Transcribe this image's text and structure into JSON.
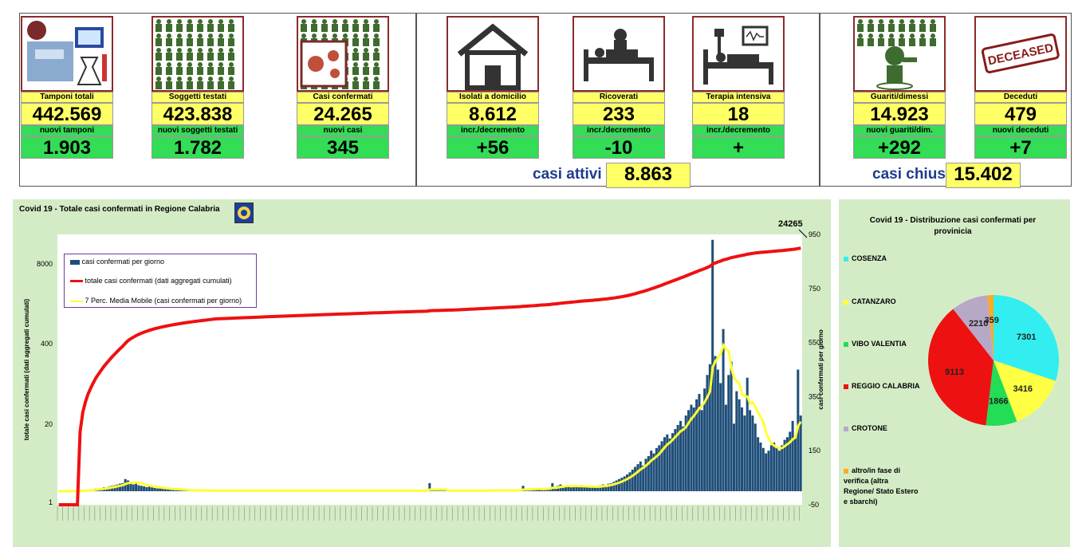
{
  "summary": {
    "cards": [
      {
        "id": "tamponi",
        "label": "Tamponi totali",
        "value": "442.569",
        "sub_label": "nuovi tamponi",
        "sub_value": "1.903"
      },
      {
        "id": "soggetti",
        "label": "Soggetti testati",
        "value": "423.838",
        "sub_label": "nuovi soggetti testati",
        "sub_value": "1.782"
      },
      {
        "id": "casi",
        "label": "Casi confermati",
        "value": "24.265",
        "sub_label": "nuovi casi",
        "sub_value": "345"
      },
      {
        "id": "isolati",
        "label": "Isolati a domicilio",
        "value": "8.612",
        "sub_label": "incr./decremento",
        "sub_value": "+56"
      },
      {
        "id": "ricoverati",
        "label": "Ricoverati",
        "value": "233",
        "sub_label": "incr./decremento",
        "sub_value": "-10"
      },
      {
        "id": "terapia",
        "label": "Terapia intensiva",
        "value": "18",
        "sub_label": "incr./decremento",
        "sub_value": "+"
      },
      {
        "id": "guariti",
        "label": "Guariti/dimessi",
        "value": "14.923",
        "sub_label": "nuovi guariti/dim.",
        "sub_value": "+292"
      },
      {
        "id": "deceduti",
        "label": "Deceduti",
        "value": "479",
        "sub_label": "nuovi deceduti",
        "sub_value": "+7"
      }
    ],
    "casi_attivi_label": "casi attivi",
    "casi_attivi_value": "8.863",
    "casi_chiusi_label": "casi chiusi",
    "casi_chiusi_value": "15.402",
    "deceased_stamp": "DECEASED"
  },
  "colors": {
    "bars": "#1f4e79",
    "cumulative": "#ee1111",
    "moving_avg": "#ffff33",
    "panel": "#d4ecc6"
  },
  "chart_data": [
    {
      "type": "bar+line",
      "title": "Covid 19 - Totale casi confermati in Regione Calabria",
      "ylabel_left": "totale casi confermati (dati aggregati cumulati)",
      "ylabel_right": "casi confermati per giorno",
      "y_left_ticks": [
        "1",
        "20",
        "400",
        "8000"
      ],
      "y_left_scale": "log",
      "y_right_ticks": [
        "-50",
        "150",
        "350",
        "550",
        "750",
        "950"
      ],
      "y_right_range": [
        -50,
        950
      ],
      "end_annotation": "24265",
      "series": [
        {
          "name": "casi confermati per giorno",
          "kind": "bar",
          "axis": "right",
          "values": [
            0,
            0,
            0,
            0,
            0,
            0,
            0,
            2,
            3,
            5,
            4,
            6,
            5,
            8,
            10,
            9,
            12,
            15,
            14,
            18,
            20,
            22,
            25,
            28,
            30,
            45,
            40,
            30,
            25,
            28,
            22,
            20,
            18,
            15,
            18,
            14,
            12,
            10,
            11,
            9,
            8,
            8,
            7,
            6,
            6,
            5,
            5,
            4,
            4,
            3,
            3,
            3,
            3,
            2,
            2,
            2,
            2,
            2,
            2,
            2,
            2,
            2,
            2,
            2,
            2,
            2,
            2,
            2,
            2,
            2,
            2,
            2,
            2,
            2,
            2,
            2,
            2,
            2,
            2,
            2,
            2,
            2,
            2,
            2,
            2,
            2,
            2,
            2,
            2,
            2,
            2,
            2,
            2,
            2,
            2,
            2,
            2,
            2,
            2,
            2,
            2,
            2,
            2,
            2,
            2,
            2,
            2,
            2,
            2,
            2,
            2,
            2,
            2,
            2,
            2,
            2,
            2,
            2,
            2,
            2,
            2,
            2,
            2,
            2,
            2,
            2,
            2,
            2,
            2,
            2,
            2,
            2,
            2,
            2,
            2,
            2,
            2,
            2,
            2,
            30,
            2,
            2,
            2,
            2,
            2,
            2,
            2,
            2,
            2,
            2,
            2,
            2,
            2,
            2,
            2,
            2,
            2,
            2,
            2,
            3,
            3,
            3,
            3,
            3,
            3,
            3,
            3,
            3,
            3,
            3,
            4,
            3,
            4,
            5,
            20,
            4,
            5,
            6,
            8,
            10,
            12,
            10,
            8,
            6,
            12,
            30,
            10,
            20,
            25,
            15,
            20,
            18,
            20,
            15,
            22,
            20,
            18,
            15,
            14,
            16,
            15,
            18,
            20,
            22,
            25,
            20,
            28,
            30,
            35,
            40,
            45,
            50,
            55,
            62,
            70,
            80,
            90,
            100,
            110,
            95,
            120,
            130,
            150,
            140,
            160,
            170,
            185,
            200,
            210,
            195,
            215,
            230,
            245,
            260,
            240,
            280,
            300,
            320,
            310,
            340,
            360,
            300,
            380,
            430,
            470,
            930,
            500,
            450,
            400,
            600,
            320,
            430,
            480,
            250,
            370,
            340,
            310,
            280,
            420,
            300,
            280,
            250,
            200,
            180,
            160,
            140,
            150,
            170,
            180,
            160,
            150,
            170,
            190,
            200,
            220,
            260,
            200,
            450,
            280
          ]
        },
        {
          "name": "totale casi confermati (dati aggregati cumulati)",
          "kind": "line",
          "axis": "left"
        },
        {
          "name": "7 Perc. Media Mobile (casi confermati per giorno)",
          "kind": "line",
          "axis": "right"
        }
      ]
    },
    {
      "type": "pie",
      "title": "Covid 19 - Distribuzione casi confermati per provinicia",
      "slices": [
        {
          "name": "COSENZA",
          "value": 7301,
          "color": "#33eef0"
        },
        {
          "name": "CATANZARO",
          "value": 3416,
          "color": "#ffff44"
        },
        {
          "name": "VIBO VALENTIA",
          "value": 1866,
          "color": "#22dd55"
        },
        {
          "name": "REGGIO CALABRIA",
          "value": 9113,
          "color": "#ee1111"
        },
        {
          "name": "CROTONE",
          "value": 2210,
          "color": "#b8a8c8"
        },
        {
          "name": "altro/in fase di verifica (altra Regione/ Stato Estero e sbarchi)",
          "value": 359,
          "color": "#ffaa22"
        }
      ]
    }
  ]
}
